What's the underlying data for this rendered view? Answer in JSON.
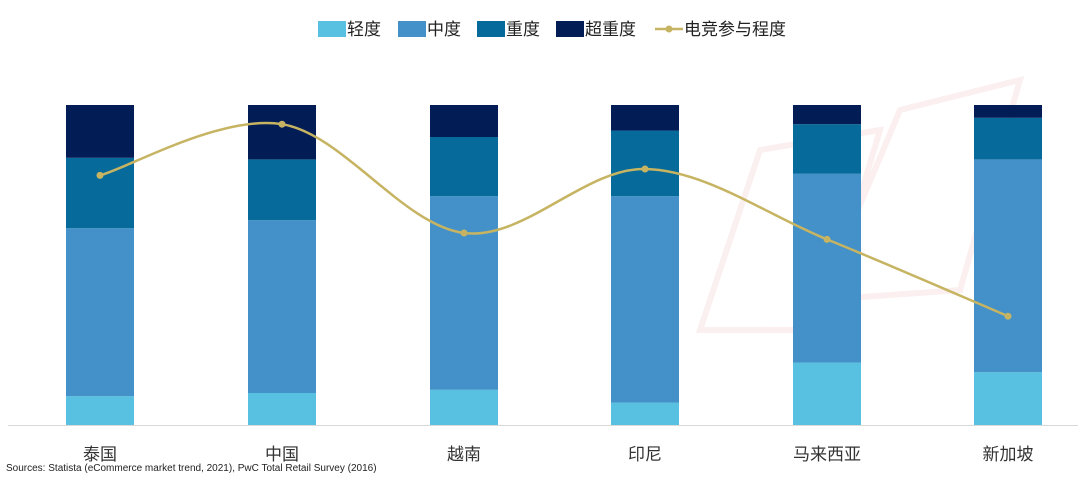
{
  "chart_data": {
    "type": "bar",
    "stacked": true,
    "categories": [
      "泰国",
      "中国",
      "越南",
      "印尼",
      "马来西亚",
      "新加坡"
    ],
    "series": [
      {
        "name": "轻度",
        "values": [
          9,
          10,
          11,
          7,
          19.5,
          16.5
        ]
      },
      {
        "name": "中度",
        "values": [
          52.5,
          54,
          60.5,
          64.5,
          59,
          66.5
        ]
      },
      {
        "name": "重度",
        "values": [
          22,
          19,
          18.5,
          20.5,
          15.5,
          13
        ]
      },
      {
        "name": "超重度",
        "values": [
          16.5,
          17,
          10,
          8,
          6,
          4
        ]
      }
    ],
    "line_series": {
      "name": "电竞参与程度",
      "values": [
        78,
        94,
        60,
        80,
        58,
        34
      ]
    },
    "ylim": [
      0,
      100
    ],
    "legend": "top-center",
    "grid": false,
    "title": "",
    "xlabel": "",
    "ylabel": ""
  },
  "colors": {
    "轻度": "#58c0e0",
    "中度": "#4391c8",
    "重度": "#066a9a",
    "超重度": "#021c56",
    "电竞参与程度": "#c6b462",
    "axis": "#d9d9d9"
  },
  "source": "Sources: Statista (eCommerce market trend, 2021), PwC Total Retail Survey (2016)"
}
